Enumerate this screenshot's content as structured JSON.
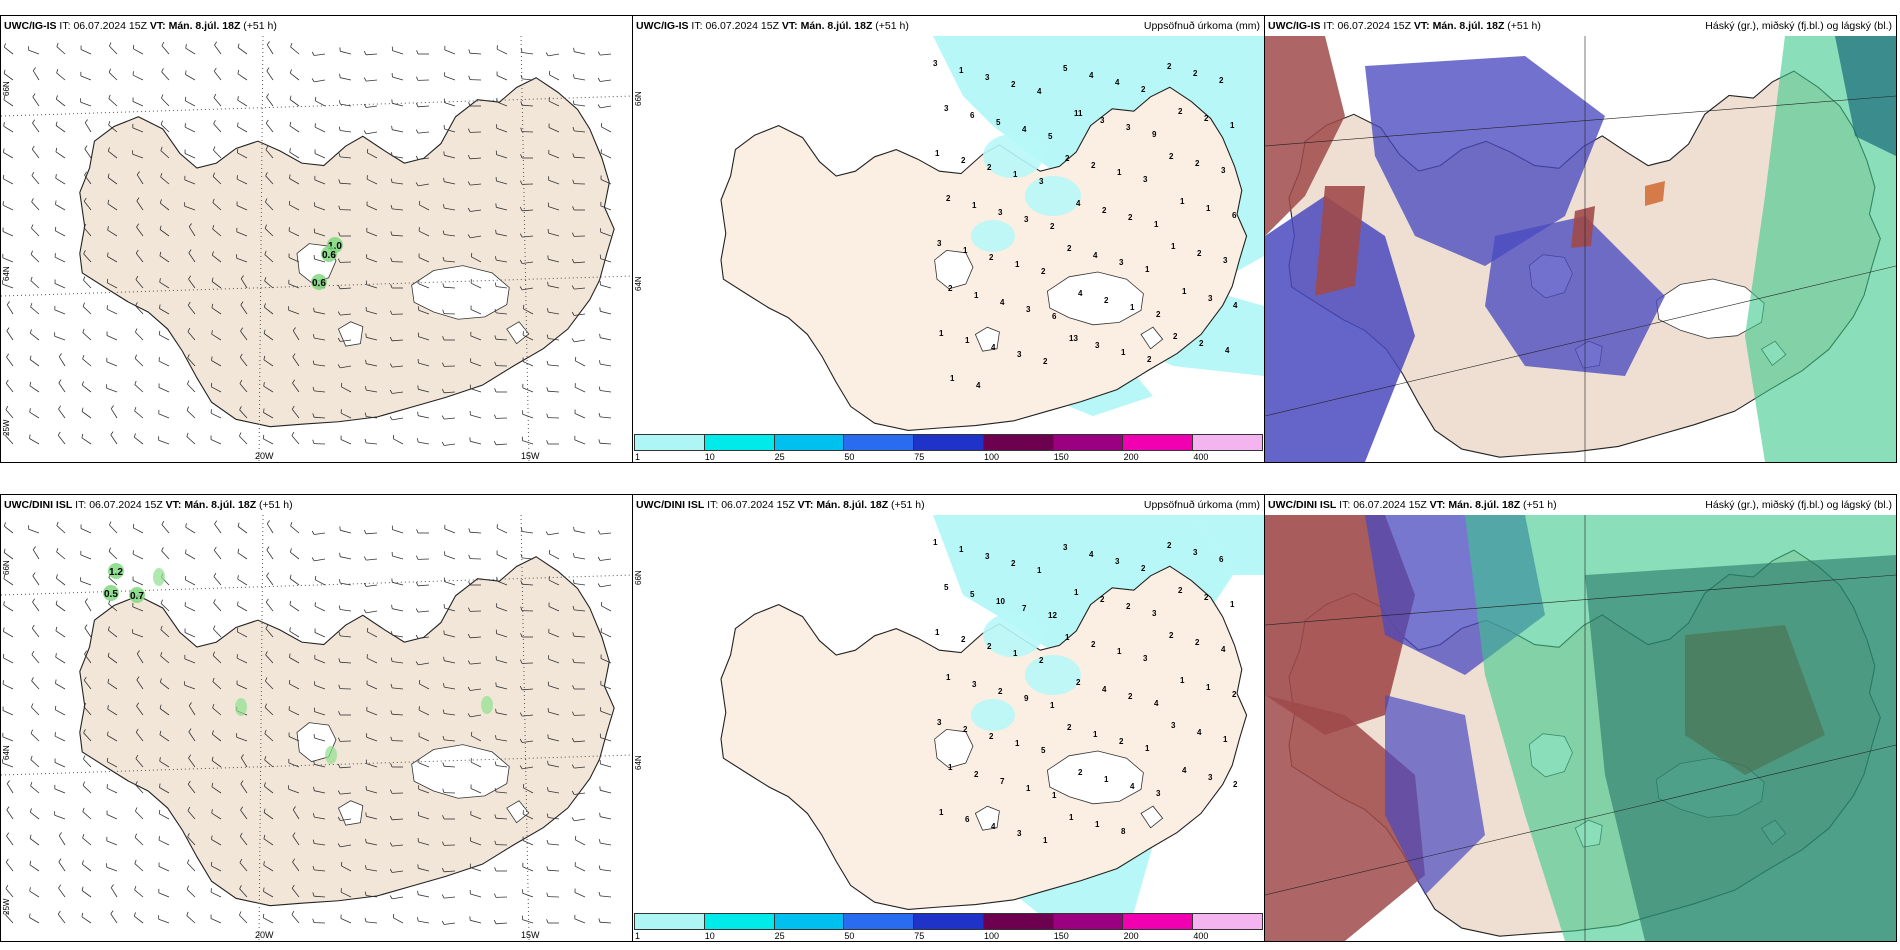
{
  "panels": [
    {
      "model": "UWC/IG-IS",
      "it_label": "IT:",
      "it": "06.07.2024 15Z",
      "vt_label": "VT:",
      "vt": "Mán. 8.júl. 18Z",
      "lead": "(+51 h)",
      "product": "",
      "lon_labels": [
        "20W",
        "15W"
      ],
      "lat_labels": [
        "66N",
        "64N",
        "25W"
      ],
      "values": [
        "1.0",
        "0.6",
        "0.6"
      ]
    },
    {
      "model": "UWC/IG-IS",
      "it_label": "IT:",
      "it": "06.07.2024 15Z",
      "vt_label": "VT:",
      "vt": "Mán. 8.júl. 18Z",
      "lead": "(+51 h)",
      "product": "Uppsöfnuð úrkoma (mm)",
      "lat_labels": [
        "66N",
        "64N"
      ],
      "values": [
        "3",
        "1",
        "3",
        "2",
        "4",
        "5",
        "4",
        "4",
        "2",
        "2",
        "2",
        "2",
        "3",
        "6",
        "5",
        "4",
        "5",
        "11",
        "3",
        "3",
        "9",
        "2",
        "2",
        "1",
        "1",
        "2",
        "2",
        "1",
        "3",
        "2",
        "2",
        "1",
        "3",
        "2",
        "2",
        "3",
        "2",
        "1",
        "3",
        "3",
        "2",
        "4",
        "2",
        "2",
        "1",
        "1",
        "1",
        "6",
        "3",
        "1",
        "2",
        "1",
        "2",
        "2",
        "4",
        "3",
        "1",
        "1",
        "2",
        "3",
        "2",
        "1",
        "4",
        "3",
        "6",
        "4",
        "2",
        "1",
        "2",
        "1",
        "3",
        "4",
        "1",
        "1",
        "4",
        "3",
        "2",
        "13",
        "3",
        "1",
        "2",
        "2",
        "2",
        "4",
        "1",
        "4"
      ]
    },
    {
      "model": "UWC/IG-IS",
      "it_label": "IT:",
      "it": "06.07.2024 15Z",
      "vt_label": "VT:",
      "vt": "Mán. 8.júl. 18Z",
      "lead": "(+51 h)",
      "product": "Háský (gr.), miðský (fj.bl.) og lágský (bl.)"
    },
    {
      "model": "UWC/DINI ISL",
      "it_label": "IT:",
      "it": "06.07.2024 15Z",
      "vt_label": "VT:",
      "vt": "Mán. 8.júl. 18Z",
      "lead": "(+51 h)",
      "product": "",
      "lon_labels": [
        "20W",
        "15W"
      ],
      "lat_labels": [
        "66N",
        "64N",
        "25W"
      ],
      "values": [
        "1.2",
        "0.5",
        "0.7"
      ]
    },
    {
      "model": "UWC/DINI ISL",
      "it_label": "IT:",
      "it": "06.07.2024 15Z",
      "vt_label": "VT:",
      "vt": "Mán. 8.júl. 18Z",
      "lead": "(+51 h)",
      "product": "Uppsöfnuð úrkoma (mm)",
      "lat_labels": [
        "66N",
        "64N"
      ],
      "values": [
        "1",
        "1",
        "3",
        "2",
        "1",
        "3",
        "4",
        "3",
        "2",
        "2",
        "3",
        "6",
        "5",
        "5",
        "10",
        "7",
        "12",
        "1",
        "2",
        "2",
        "3",
        "2",
        "2",
        "1",
        "1",
        "2",
        "2",
        "1",
        "2",
        "1",
        "2",
        "1",
        "3",
        "2",
        "2",
        "4",
        "1",
        "3",
        "2",
        "9",
        "1",
        "2",
        "4",
        "2",
        "4",
        "1",
        "1",
        "2",
        "3",
        "2",
        "2",
        "1",
        "5",
        "2",
        "1",
        "2",
        "1",
        "3",
        "4",
        "1",
        "1",
        "2",
        "7",
        "1",
        "1",
        "2",
        "1",
        "4",
        "3",
        "4",
        "3",
        "2",
        "1",
        "6",
        "4",
        "3",
        "1",
        "1",
        "1",
        "8"
      ]
    },
    {
      "model": "UWC/DINI ISL",
      "it_label": "IT:",
      "it": "06.07.2024 15Z",
      "vt_label": "VT:",
      "vt": "Mán. 8.júl. 18Z",
      "lead": "(+51 h)",
      "product": "Háský (gr.), miðský (fj.bl.) og lágský (bl.)"
    }
  ],
  "legend": {
    "ticks": [
      "1",
      "10",
      "25",
      "50",
      "75",
      "100",
      "150",
      "200",
      "400"
    ],
    "colors": [
      "#aef5f5",
      "#00eaea",
      "#00c0f0",
      "#2a6cf0",
      "#1f33c8",
      "#6e0050",
      "#9a0080",
      "#f000b0",
      "#f4b4f0"
    ]
  },
  "colors": {
    "land": "#f2e6d8",
    "land_precip": "#fbeee2",
    "sea_precip_light": "#b7f7f7",
    "cloud_high": "#3cc88a",
    "cloud_mid": "#4a4ac0",
    "cloud_low": "#a04a4a"
  }
}
